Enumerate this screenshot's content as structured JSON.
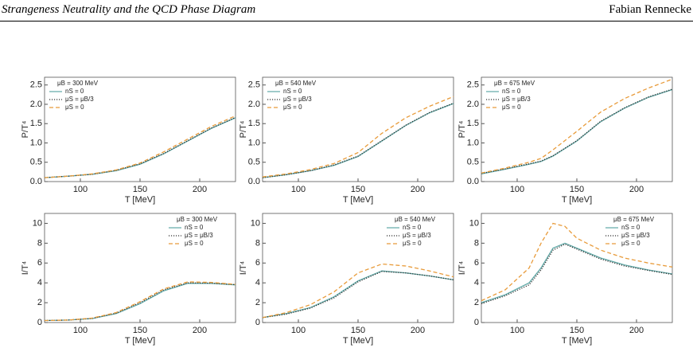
{
  "header": {
    "title": "Strangeness Neutrality and the QCD Phase Diagram",
    "author": "Fabian Rennecke"
  },
  "chart_data": [
    {
      "type": "line",
      "legend_title": "μB = 300 MeV",
      "legend": "upper left",
      "xlabel": "T [MeV]",
      "ylabel": "P/T⁴",
      "x": [
        70,
        90,
        110,
        130,
        150,
        170,
        190,
        210,
        230
      ],
      "xlim": [
        70,
        230
      ],
      "xticks": [
        100,
        150,
        200
      ],
      "ylim": [
        0,
        2.7
      ],
      "yticks": [
        {
          "value": 0,
          "label": "0.0"
        },
        0.5,
        {
          "value": 1,
          "label": "1.0"
        },
        1.5,
        {
          "value": 2,
          "label": "2.0"
        },
        2.5
      ],
      "series": [
        {
          "name": "nS = 0",
          "color": "#5fa8a6",
          "dash": "solid",
          "values": [
            0.1,
            0.14,
            0.19,
            0.28,
            0.45,
            0.72,
            1.05,
            1.38,
            1.65
          ]
        },
        {
          "name": "μS = μB/3",
          "color": "#333333",
          "dash": "dotted",
          "values": [
            0.1,
            0.14,
            0.19,
            0.29,
            0.46,
            0.73,
            1.06,
            1.39,
            1.66
          ]
        },
        {
          "name": "μS = 0",
          "color": "#e89b3a",
          "dash": "dashed",
          "values": [
            0.1,
            0.14,
            0.2,
            0.3,
            0.48,
            0.77,
            1.1,
            1.43,
            1.7
          ]
        }
      ]
    },
    {
      "type": "line",
      "legend_title": "μB = 540 MeV",
      "legend": "upper left",
      "xlabel": "T [MeV]",
      "ylabel": "P/T⁴",
      "x": [
        70,
        90,
        110,
        130,
        150,
        170,
        190,
        210,
        230
      ],
      "xlim": [
        70,
        230
      ],
      "xticks": [
        100,
        150,
        200
      ],
      "ylim": [
        0,
        2.7
      ],
      "yticks": [
        {
          "value": 0,
          "label": "0.0"
        },
        0.5,
        {
          "value": 1,
          "label": "1.0"
        },
        1.5,
        {
          "value": 2,
          "label": "2.0"
        },
        2.5
      ],
      "series": [
        {
          "name": "nS = 0",
          "color": "#5fa8a6",
          "dash": "solid",
          "values": [
            0.1,
            0.18,
            0.28,
            0.42,
            0.65,
            1.05,
            1.45,
            1.78,
            2.02
          ]
        },
        {
          "name": "μS = μB/3",
          "color": "#333333",
          "dash": "dotted",
          "values": [
            0.1,
            0.18,
            0.28,
            0.43,
            0.66,
            1.06,
            1.46,
            1.79,
            2.03
          ]
        },
        {
          "name": "μS = 0",
          "color": "#e89b3a",
          "dash": "dashed",
          "values": [
            0.12,
            0.2,
            0.31,
            0.47,
            0.75,
            1.25,
            1.65,
            1.95,
            2.2
          ]
        }
      ]
    },
    {
      "type": "line",
      "legend_title": "μB = 675 MeV",
      "legend": "upper left",
      "xlabel": "T [MeV]",
      "ylabel": "P/T⁴",
      "x": [
        70,
        90,
        110,
        120,
        130,
        150,
        170,
        190,
        210,
        230
      ],
      "xlim": [
        70,
        230
      ],
      "xticks": [
        100,
        150,
        200
      ],
      "ylim": [
        0,
        2.7
      ],
      "yticks": [
        {
          "value": 0,
          "label": "0.0"
        },
        0.5,
        {
          "value": 1,
          "label": "1.0"
        },
        1.5,
        {
          "value": 2,
          "label": "2.0"
        },
        2.5
      ],
      "series": [
        {
          "name": "nS = 0",
          "color": "#5fa8a6",
          "dash": "solid",
          "values": [
            0.2,
            0.32,
            0.45,
            0.52,
            0.66,
            1.05,
            1.55,
            1.9,
            2.18,
            2.38
          ]
        },
        {
          "name": "μS = μB/3",
          "color": "#333333",
          "dash": "dotted",
          "values": [
            0.21,
            0.33,
            0.46,
            0.53,
            0.67,
            1.06,
            1.56,
            1.91,
            2.19,
            2.39
          ]
        },
        {
          "name": "μS = 0",
          "color": "#e89b3a",
          "dash": "dashed",
          "values": [
            0.22,
            0.35,
            0.5,
            0.6,
            0.82,
            1.3,
            1.8,
            2.15,
            2.42,
            2.65
          ]
        }
      ]
    },
    {
      "type": "line",
      "legend_title": "μB = 300 MeV",
      "legend": "upper right",
      "xlabel": "T [MeV]",
      "ylabel": "I/T⁴",
      "x": [
        70,
        90,
        110,
        130,
        150,
        170,
        190,
        210,
        230
      ],
      "xlim": [
        70,
        230
      ],
      "xticks": [
        100,
        150,
        200
      ],
      "ylim": [
        0,
        11
      ],
      "yticks": [
        0,
        2,
        4,
        6,
        8,
        10
      ],
      "series": [
        {
          "name": "nS = 0",
          "color": "#5fa8a6",
          "dash": "solid",
          "values": [
            0.2,
            0.25,
            0.4,
            0.9,
            1.9,
            3.2,
            3.95,
            3.95,
            3.8
          ]
        },
        {
          "name": "μS = μB/3",
          "color": "#333333",
          "dash": "dotted",
          "values": [
            0.2,
            0.25,
            0.42,
            0.95,
            2.0,
            3.3,
            4.0,
            3.97,
            3.82
          ]
        },
        {
          "name": "μS = 0",
          "color": "#e89b3a",
          "dash": "dashed",
          "values": [
            0.2,
            0.25,
            0.45,
            1.0,
            2.1,
            3.4,
            4.1,
            4.05,
            3.85
          ]
        }
      ]
    },
    {
      "type": "line",
      "legend_title": "μB = 540 MeV",
      "legend": "upper right",
      "xlabel": "T [MeV]",
      "ylabel": "I/T⁴",
      "x": [
        70,
        90,
        110,
        130,
        150,
        170,
        190,
        210,
        230
      ],
      "xlim": [
        70,
        230
      ],
      "xticks": [
        100,
        150,
        200
      ],
      "ylim": [
        0,
        11
      ],
      "yticks": [
        0,
        2,
        4,
        6,
        8,
        10
      ],
      "series": [
        {
          "name": "nS = 0",
          "color": "#5fa8a6",
          "dash": "solid",
          "values": [
            0.5,
            0.9,
            1.5,
            2.6,
            4.2,
            5.2,
            5.0,
            4.7,
            4.3
          ]
        },
        {
          "name": "μS = μB/3",
          "color": "#333333",
          "dash": "dotted",
          "values": [
            0.5,
            0.85,
            1.45,
            2.5,
            4.1,
            5.15,
            5.0,
            4.7,
            4.3
          ]
        },
        {
          "name": "μS = 0",
          "color": "#e89b3a",
          "dash": "dashed",
          "values": [
            0.5,
            1.0,
            1.8,
            3.1,
            5.0,
            5.9,
            5.7,
            5.2,
            4.6
          ]
        }
      ]
    },
    {
      "type": "line",
      "legend_title": "μB = 675 MeV",
      "legend": "upper right",
      "xlabel": "T [MeV]",
      "ylabel": "I/T⁴",
      "x": [
        70,
        90,
        110,
        120,
        130,
        140,
        150,
        170,
        190,
        210,
        230
      ],
      "xlim": [
        70,
        230
      ],
      "xticks": [
        100,
        150,
        200
      ],
      "ylim": [
        0,
        11
      ],
      "yticks": [
        0,
        2,
        4,
        6,
        8,
        10
      ],
      "series": [
        {
          "name": "nS = 0",
          "color": "#5fa8a6",
          "dash": "solid",
          "values": [
            2.0,
            2.8,
            4.0,
            5.5,
            7.5,
            8.0,
            7.5,
            6.5,
            5.8,
            5.3,
            4.9
          ]
        },
        {
          "name": "μS = μB/3",
          "color": "#333333",
          "dash": "dotted",
          "values": [
            1.9,
            2.7,
            3.8,
            5.3,
            7.3,
            7.9,
            7.4,
            6.4,
            5.7,
            5.25,
            4.85
          ]
        },
        {
          "name": "μS = 0",
          "color": "#e89b3a",
          "dash": "dashed",
          "values": [
            2.2,
            3.3,
            5.5,
            8.0,
            10.0,
            9.7,
            8.5,
            7.3,
            6.5,
            6.0,
            5.6
          ]
        }
      ]
    }
  ]
}
